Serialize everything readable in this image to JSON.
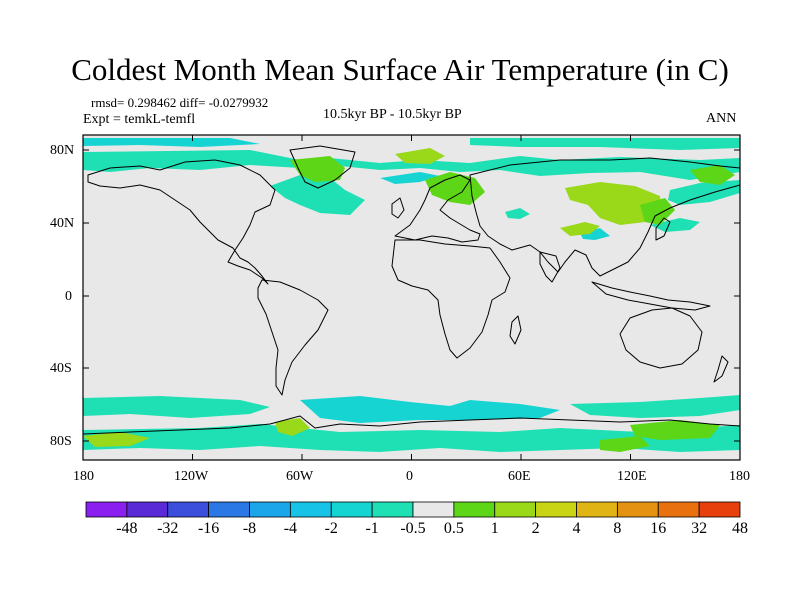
{
  "title": "Coldest Month Mean Surface Air Temperature (in C)",
  "stats": "rmsd= 0.298462  diff= -0.0279932",
  "experiment": "Expt = temkL-temfl",
  "period": "10.5kyr BP - 10.5kyr BP",
  "season": "ANN",
  "lat_labels": [
    "80N",
    "40N",
    "0",
    "40S",
    "80S"
  ],
  "lon_labels": [
    "180",
    "120W",
    "60W",
    "0",
    "60E",
    "120E",
    "180"
  ],
  "colorbar": {
    "labels": [
      "-48",
      "-32",
      "-16",
      "-8",
      "-4",
      "-2",
      "-1",
      "-0.5",
      "0.5",
      "1",
      "2",
      "4",
      "8",
      "16",
      "32",
      "48"
    ],
    "colors": [
      "#8a1ff0",
      "#5a2ad6",
      "#3c4fdc",
      "#2a78e6",
      "#1aa6e8",
      "#17c3e6",
      "#16d4d2",
      "#1fe0b4",
      "#e8e8e8",
      "#5cd616",
      "#9ad81a",
      "#c8d414",
      "#e0b414",
      "#e49212",
      "#e8700e",
      "#e8400c"
    ]
  },
  "map": {
    "background_color": "#e8e8e8",
    "anomaly_colors": {
      "cool_light": "#1fe0b4",
      "cool": "#16d4d2",
      "warm_light": "#9ad81a",
      "warm": "#5cd616"
    }
  }
}
